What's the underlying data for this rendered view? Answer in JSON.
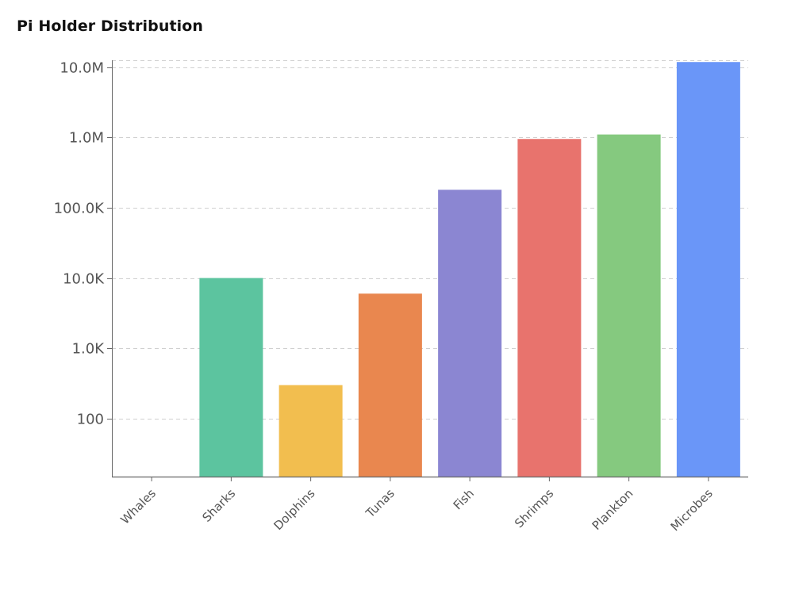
{
  "chart_data": {
    "type": "bar",
    "title": "Pi Holder Distribution",
    "xlabel": "",
    "ylabel": "",
    "yscale": "log",
    "ylim": [
      15,
      12500000
    ],
    "grid": true,
    "legend": "none",
    "categories": [
      "Whales",
      "Sharks",
      "Dolphins",
      "Tunas",
      "Fish",
      "Shrimps",
      "Plankton",
      "Microbes"
    ],
    "values": [
      0,
      10000,
      300,
      6000,
      180000,
      950000,
      1100000,
      11800000
    ],
    "colors": [
      "#ffffff",
      "#5cc49f",
      "#f2be4f",
      "#e9874f",
      "#8b86d2",
      "#e8736d",
      "#85c97f",
      "#6a96f8"
    ],
    "ytick_values": [
      100,
      1000,
      10000,
      100000,
      1000000,
      10000000
    ],
    "ytick_labels": [
      "100",
      "1.0K",
      "10.0K",
      "100.0K",
      "1.0M",
      "10.0M"
    ]
  }
}
